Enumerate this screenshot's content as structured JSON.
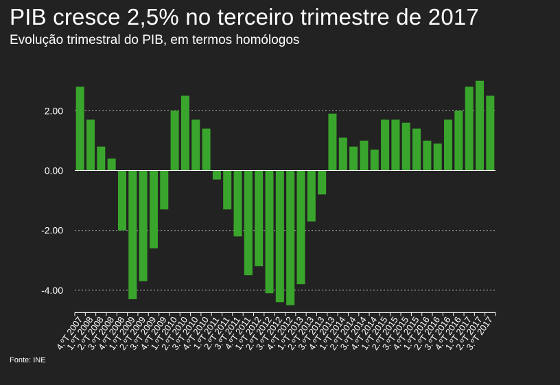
{
  "title": "PIB cresce 2,5% no terceiro trimestre de 2017",
  "subtitle": "Evolução trimestral do PIB, em termos homólogos",
  "source": "Fonte: INE",
  "colors": {
    "background": "#222222",
    "bar": "#3aa52c",
    "grid": "#bbbbbb",
    "text": "#ffffff"
  },
  "chart_data": {
    "type": "bar",
    "title": "PIB cresce 2,5% no terceiro trimestre de 2017",
    "subtitle": "Evolução trimestral do PIB, em termos homólogos",
    "xlabel": "",
    "ylabel": "",
    "ylim": [
      -4.7,
      3.1
    ],
    "yticks": [
      "2.00",
      "0.00",
      "-2.00",
      "-4.00"
    ],
    "grid": true,
    "categories": [
      "4.ºT 2007",
      "1.ºT 2008",
      "2.ºT 2008",
      "3.ºT 2008",
      "4.ºT 2008",
      "1.ºT 2009",
      "2.ºT 2009",
      "3.ºT 2009",
      "4.ºT 2009",
      "1.ºT 2010",
      "2.ºT 2010",
      "3.ºT 2010",
      "4.ºT 2010",
      "1.ºT 2011",
      "2.ºT 2011",
      "3.ºT 2011",
      "4.ºT 2011",
      "1.ºT 2012",
      "2.ºT 2012",
      "3.ºT 2012",
      "4.ºT 2012",
      "1.ºT 2013",
      "2.ºT 2013",
      "3.ºT 2013",
      "4.ºT 2013",
      "1.ºT 2014",
      "2.ºT 2014",
      "3.ºT 2014",
      "4.ºT 2014",
      "1.ºT 2015",
      "2.ºT 2015",
      "3.ºT 2015",
      "4.ºT 2015",
      "1.ºT 2016",
      "2.ºT 2016",
      "3.ºT 2016",
      "4.ºT 2016",
      "1.ºT 2017",
      "2.ºT 2017",
      "3.ºT 2017"
    ],
    "values": [
      2.8,
      1.7,
      0.8,
      0.4,
      -2.0,
      -4.3,
      -3.7,
      -2.6,
      -1.3,
      2.0,
      2.5,
      1.7,
      1.4,
      -0.3,
      -1.3,
      -2.2,
      -3.5,
      -3.2,
      -4.1,
      -4.4,
      -4.5,
      -3.8,
      -1.7,
      -0.8,
      1.9,
      1.1,
      0.8,
      1.0,
      0.7,
      1.7,
      1.7,
      1.6,
      1.4,
      1.0,
      0.9,
      1.7,
      2.0,
      2.8,
      3.0,
      2.5
    ]
  }
}
